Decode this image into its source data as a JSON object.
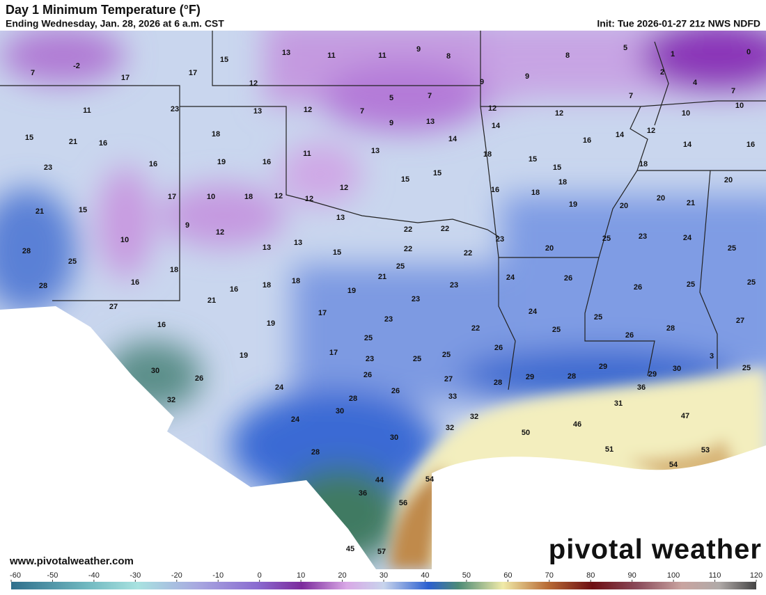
{
  "header": {
    "title": "Day 1 Minimum Temperature (°F)",
    "subtitle": "Ending Wednesday, Jan. 28, 2026 at 6 a.m. CST",
    "init": "Init: Tue 2026-01-27 21z NWS NDFD"
  },
  "footer": {
    "website": "www.pivotalweather.com",
    "logo": "pivotal weather"
  },
  "colorbar": {
    "lim": [
      -60,
      120
    ],
    "ticks": [
      -60,
      -50,
      -40,
      -30,
      -20,
      -10,
      0,
      10,
      20,
      30,
      40,
      50,
      60,
      70,
      80,
      90,
      100,
      110,
      120
    ]
  },
  "map_labels": [
    -2,
    7,
    17,
    17,
    15,
    13,
    11,
    11,
    9,
    8,
    8,
    5,
    1,
    0,
    12,
    9,
    9,
    2,
    4,
    7,
    11,
    23,
    13,
    12,
    7,
    5,
    7,
    12,
    12,
    7,
    10,
    10,
    15,
    21,
    16,
    18,
    9,
    13,
    14,
    14,
    12,
    14,
    16,
    23,
    19,
    16,
    16,
    11,
    13,
    14,
    18,
    16,
    15,
    15,
    18,
    20,
    15,
    15,
    12,
    16,
    18,
    18,
    21,
    15,
    17,
    10,
    18,
    12,
    12,
    19,
    20,
    20,
    21,
    13,
    22,
    22,
    9,
    12,
    23,
    25,
    23,
    24,
    25,
    10,
    13,
    13,
    15,
    22,
    22,
    20,
    28,
    25,
    25,
    18,
    28,
    16,
    16,
    18,
    18,
    19,
    21,
    23,
    24,
    26,
    26,
    25,
    25,
    27,
    21,
    23,
    17,
    24,
    25,
    16,
    19,
    23,
    22,
    25,
    26,
    28,
    27,
    25,
    26,
    17,
    19,
    23,
    25,
    25,
    30,
    26,
    26,
    27,
    28,
    29,
    28,
    29,
    29,
    30,
    3,
    25,
    36,
    24,
    26,
    33,
    28,
    31,
    32,
    30,
    32,
    24,
    46,
    47,
    32,
    30,
    50,
    28,
    51,
    53,
    54,
    54,
    44,
    36,
    56,
    45,
    57
  ]
}
